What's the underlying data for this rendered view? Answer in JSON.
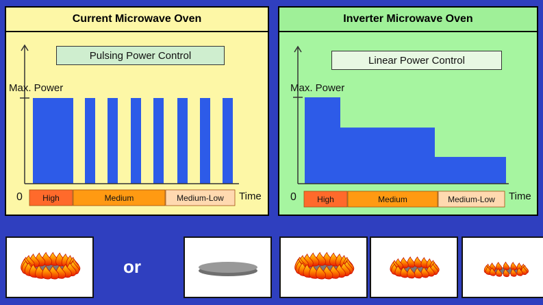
{
  "left_panel": {
    "title": "Current Microwave Oven",
    "control_label": "Pulsing Power Control",
    "y_label": "Max. Power",
    "origin": "0",
    "x_label": "Time",
    "segments": [
      "High",
      "Medium",
      "Medium-Low"
    ]
  },
  "right_panel": {
    "title": "Inverter Microwave Oven",
    "control_label": "Linear Power Control",
    "y_label": "Max. Power",
    "origin": "0",
    "x_label": "Time",
    "segments": [
      "High",
      "Medium",
      "Medium-Low"
    ]
  },
  "colors": {
    "bar": "#2d5be8",
    "high": "#ff6a2b",
    "medium": "#ff9a12",
    "medium_low": "#ffd9b0"
  },
  "bottom": {
    "or_label": "or",
    "images": [
      "large-flame-icon",
      "flat-plate-icon",
      "large-flame-icon",
      "medium-flame-icon",
      "small-flame-icon"
    ]
  },
  "chart_data": [
    {
      "type": "bar",
      "series": [
        {
          "values": [
            1,
            1,
            1,
            1,
            1,
            1,
            1,
            1
          ]
        }
      ],
      "ylim": [
        0,
        1
      ]
    },
    {
      "type": "area",
      "series": [
        {
          "values": [
            1,
            0.65,
            0.31
          ]
        }
      ],
      "ylim": [
        0,
        1
      ]
    }
  ]
}
